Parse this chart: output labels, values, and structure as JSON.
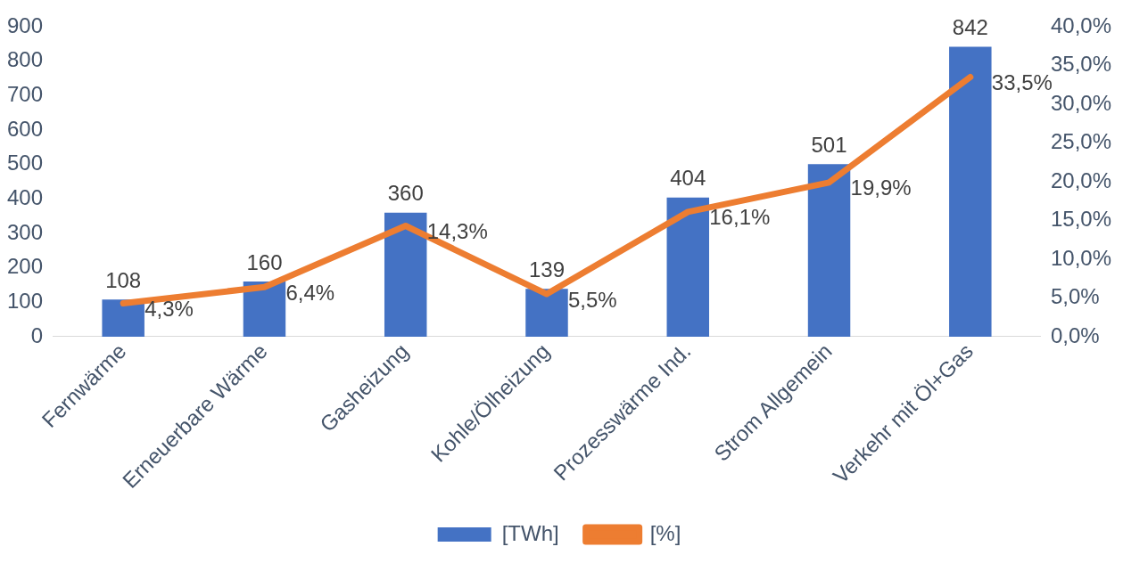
{
  "chart_data": {
    "type": "bar",
    "categories": [
      "Fernwärme",
      "Erneuerbare Wärme",
      "Gasheizung",
      "Kohle/Ölheizung",
      "Prozesswärme Ind.",
      "Strom Allgemein",
      "Verkehr mit Öl+Gas"
    ],
    "series": [
      {
        "name": "[TWh]",
        "color": "#4472c4",
        "values": [
          108,
          160,
          360,
          139,
          404,
          501,
          842
        ],
        "value_labels": [
          "108",
          "160",
          "360",
          "139",
          "404",
          "501",
          "842"
        ]
      },
      {
        "name": "[%]",
        "type": "line",
        "axis": "y2",
        "color": "#ed7d31",
        "values": [
          4.3,
          6.4,
          14.3,
          5.5,
          16.1,
          19.9,
          33.5
        ],
        "value_labels": [
          "4,3%",
          "6,4%",
          "14,3%",
          "5,5%",
          "16,1%",
          "19,9%",
          "33,5%"
        ]
      }
    ],
    "ylim": [
      0,
      900
    ],
    "yticks": [
      0,
      100,
      200,
      300,
      400,
      500,
      600,
      700,
      800,
      900
    ],
    "y2lim": [
      0,
      40
    ],
    "y2ticks": [
      {
        "value": 0,
        "label": "0,0%"
      },
      {
        "value": 5,
        "label": "5,0%"
      },
      {
        "value": 10,
        "label": "10,0%"
      },
      {
        "value": 15,
        "label": "15,0%"
      },
      {
        "value": 20,
        "label": "20,0%"
      },
      {
        "value": 25,
        "label": "25,0%"
      },
      {
        "value": 30,
        "label": "30,0%"
      },
      {
        "value": 35,
        "label": "35,0%"
      },
      {
        "value": 40,
        "label": "40,0%"
      }
    ],
    "grid": false,
    "legend": "bottom",
    "marker": "none"
  }
}
